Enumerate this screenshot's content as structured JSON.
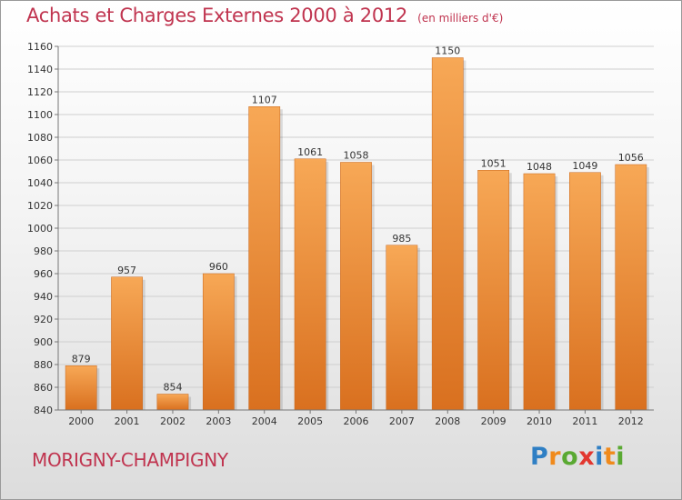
{
  "header": {
    "title": "Achats et Charges Externes 2000 à 2012",
    "unit": "(en milliers d'€)"
  },
  "footer": {
    "town": "MORIGNY-CHAMPIGNY",
    "logo": [
      "P",
      "r",
      "o",
      "x",
      "i",
      "t",
      "i"
    ],
    "logo_colors": [
      "#2f7fc4",
      "#f08a1c",
      "#5aa932",
      "#e2372f",
      "#2f7fc4",
      "#f08a1c",
      "#5aa932"
    ]
  },
  "colors": {
    "bar_light": "#f7a856",
    "bar_dark": "#d9701f",
    "title": "#c0344f"
  },
  "chart_data": {
    "type": "bar",
    "title": "Achats et Charges Externes 2000 à 2012",
    "subtitle": "(en milliers d'€)",
    "categories": [
      "2000",
      "2001",
      "2002",
      "2003",
      "2004",
      "2005",
      "2006",
      "2007",
      "2008",
      "2009",
      "2010",
      "2011",
      "2012"
    ],
    "values": [
      879,
      957,
      854,
      960,
      1107,
      1061,
      1058,
      985,
      1150,
      1051,
      1048,
      1049,
      1056
    ],
    "ylim": [
      840,
      1160
    ],
    "yticks": [
      840,
      860,
      880,
      900,
      920,
      940,
      960,
      980,
      1000,
      1020,
      1040,
      1060,
      1080,
      1100,
      1120,
      1140,
      1160
    ],
    "grid": true,
    "data_labels": true
  }
}
